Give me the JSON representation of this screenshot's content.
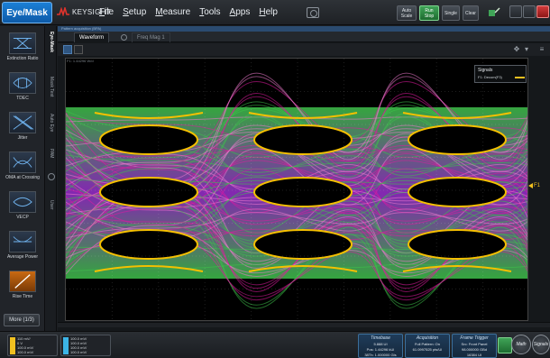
{
  "app": {
    "mode_button": "Eye/Mask",
    "logo_text": "KEYSIGHT",
    "menu": [
      "File",
      "Setup",
      "Measure",
      "Tools",
      "Apps",
      "Help"
    ],
    "toolbar_buttons": [
      {
        "label": "Auto Scale"
      },
      {
        "label": "Run Stop"
      },
      {
        "label": "Single"
      },
      {
        "label": "Clear"
      }
    ]
  },
  "sidebar": {
    "items": [
      {
        "label": "Extinction Ratio",
        "icon": "extinction-ratio-icon"
      },
      {
        "label": "TDEC",
        "icon": "tdec-icon"
      },
      {
        "label": "Jitter",
        "icon": "jitter-icon"
      },
      {
        "label": "OMA at Crossing",
        "icon": "oma-crossing-icon"
      },
      {
        "label": "VECP",
        "icon": "vecp-icon"
      },
      {
        "label": "Average Power",
        "icon": "average-power-icon"
      },
      {
        "label": "Rise Time",
        "icon": "rise-time-icon"
      }
    ],
    "more_label": "More (1/3)"
  },
  "vertical_tabs": [
    "Eye-Mask",
    "Mask Test",
    "Auto Eye",
    "PAM",
    "Mark",
    "User"
  ],
  "main": {
    "subtitle": "Pattern acquisition (BPA)",
    "tabs": [
      "Waveform",
      "Freq Mag 1"
    ],
    "waveform_meta": "F1: 1.44296 W/d",
    "legend": {
      "title": "Signals",
      "entry": "F1: Decom(F3)"
    },
    "marker_label": "F1"
  },
  "status": {
    "channels": [
      {
        "lines": [
          "110 mV/",
          "0 V",
          "100.0 mV/",
          "100.0 mV/"
        ],
        "color": "#f0c020"
      },
      {
        "lines": [
          "100.0 mV/",
          "100.0 mV/",
          "100.0 mV/",
          "100.0 mV/"
        ],
        "color": "#3cb4e6"
      }
    ],
    "timebase": {
      "title": "Timebase",
      "lines": [
        "5.888 UI",
        "Pos: 1.44296 kUI",
        "38Th: 1.000000 GIs"
      ]
    },
    "acquisition": {
      "title": "Acquisition",
      "lines": [
        "Full Pattern: On",
        "61.0997525 pts/UI"
      ]
    },
    "frame_trigger": {
      "title": "Frame Trigger",
      "lines": [
        "Src: Front Panel",
        "98.000000 GBd",
        "16384 UI"
      ]
    },
    "buttons": [
      "Math",
      "Signals"
    ]
  },
  "colors": {
    "accent": "#1b7fd6",
    "marker": "#f0c020",
    "eye_outer": "#3ec24a",
    "eye_inner": "#e01aa0",
    "eye_core": "#f5c000"
  }
}
